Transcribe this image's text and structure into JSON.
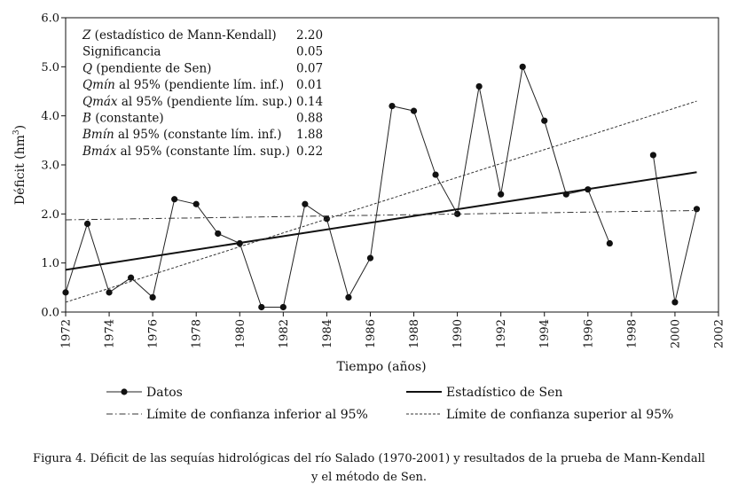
{
  "chart_data": {
    "type": "line",
    "xlabel": "Tiempo (años)",
    "ylabel_main": "Déficit (hm",
    "ylabel_sup": "3",
    "ylabel_close": ")",
    "xlim": [
      1972,
      2002
    ],
    "ylim": [
      0,
      6
    ],
    "x_ticks": [
      "1972",
      "1974",
      "1976",
      "1978",
      "1980",
      "1982",
      "1984",
      "1986",
      "1988",
      "1990",
      "1992",
      "1994",
      "1996",
      "1998",
      "2000",
      "2002"
    ],
    "y_ticks": [
      "0.0",
      "1.0",
      "2.0",
      "3.0",
      "4.0",
      "5.0",
      "6.0"
    ],
    "series": [
      {
        "name": "Datos",
        "style": "markers-lines",
        "segments": [
          [
            [
              1972,
              0.4
            ],
            [
              1973,
              1.8
            ],
            [
              1974,
              0.4
            ],
            [
              1975,
              0.7
            ],
            [
              1976,
              0.3
            ],
            [
              1977,
              2.3
            ],
            [
              1978,
              2.2
            ],
            [
              1979,
              1.6
            ],
            [
              1980,
              1.4
            ],
            [
              1981,
              0.1
            ],
            [
              1982,
              0.1
            ],
            [
              1983,
              2.2
            ],
            [
              1984,
              1.9
            ],
            [
              1985,
              0.3
            ],
            [
              1986,
              1.1
            ],
            [
              1987,
              4.2
            ],
            [
              1988,
              4.1
            ],
            [
              1989,
              2.8
            ],
            [
              1990,
              2.0
            ],
            [
              1991,
              4.6
            ],
            [
              1992,
              2.4
            ],
            [
              1993,
              5.0
            ],
            [
              1994,
              3.9
            ],
            [
              1995,
              2.4
            ],
            [
              1996,
              2.5
            ],
            [
              1997,
              1.4
            ]
          ],
          [
            [
              1999,
              3.2
            ],
            [
              2000,
              0.2
            ],
            [
              2001,
              2.1
            ]
          ]
        ]
      },
      {
        "name": "Estadístico de Sen",
        "style": "solid",
        "x": [
          1972,
          2001
        ],
        "y": [
          0.86,
          2.85
        ]
      },
      {
        "name": "Límite de confianza inferior al 95%",
        "style": "dashdot",
        "x": [
          1972,
          2001
        ],
        "y": [
          1.88,
          2.07
        ]
      },
      {
        "name": "Límite de confianza superior al 95%",
        "style": "dotted",
        "x": [
          1972,
          2001
        ],
        "y": [
          0.2,
          4.3
        ]
      }
    ],
    "stats": [
      {
        "symbol": "Z",
        "label": " (estadístico de Mann-Kendall)",
        "value": "2.20"
      },
      {
        "symbol": "",
        "label": "Significancia",
        "value": "0.05"
      },
      {
        "symbol": "Q",
        "label": " (pendiente de Sen)",
        "value": "0.07"
      },
      {
        "symbol": "Qmín",
        "label": " al 95% (pendiente lím. inf.)",
        "value": "0.01"
      },
      {
        "symbol": "Qmáx",
        "label": " al 95% (pendiente lím. sup.)",
        "value": "0.14"
      },
      {
        "symbol": "B",
        "label": " (constante)",
        "value": "0.88"
      },
      {
        "symbol": "Bmín",
        "label": " al 95% (constante lím. inf.)",
        "value": "1.88"
      },
      {
        "symbol": "Bmáx",
        "label": " al 95% (constante lím. sup.)",
        "value": "0.22"
      }
    ],
    "legend": [
      {
        "label": "Datos",
        "style": "markers-lines"
      },
      {
        "label": "Estadístico de Sen",
        "style": "solid"
      },
      {
        "label": "Límite de confianza inferior al 95%",
        "style": "dashdot"
      },
      {
        "label": "Límite de confianza superior al 95%",
        "style": "dotted"
      }
    ]
  },
  "caption": {
    "line1": "Figura 4. Déficit de las sequías hidrológicas del río Salado (1970-2001) y resultados de la prueba de Mann-Kendall",
    "line2": "y el método de Sen."
  }
}
